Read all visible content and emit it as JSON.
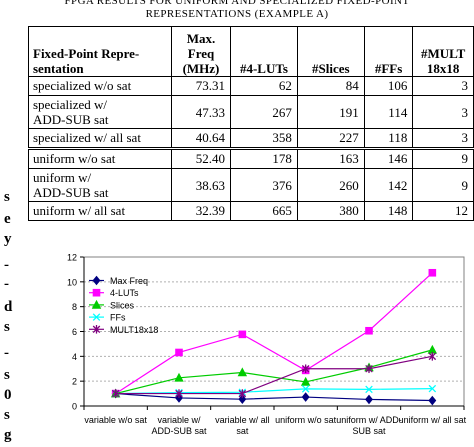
{
  "caption": {
    "line1": "FPGA RESULTS FOR UNIFORM AND SPECIALIZED FIXED-POINT",
    "line2": "REPRESENTATIONS (EXAMPLE A)"
  },
  "left_edge": [
    "s",
    "e",
    "y",
    "-",
    "-",
    "d",
    "s",
    "-",
    "s",
    "0",
    "s",
    "g"
  ],
  "table": {
    "headers": [
      [
        "Fixed-Point Repre-",
        "sentation"
      ],
      [
        "Max.",
        "Freq",
        "(MHz)"
      ],
      [
        "#4-LUTs"
      ],
      [
        "#Slices"
      ],
      [
        "#FFs"
      ],
      [
        "#MULT",
        "18x18"
      ]
    ],
    "rows": [
      {
        "name": [
          "specialized w/o sat"
        ],
        "values": [
          "73.31",
          "62",
          "84",
          "106",
          "3"
        ]
      },
      {
        "name": [
          "specialized w/",
          "ADD-SUB sat"
        ],
        "values": [
          "47.33",
          "267",
          "191",
          "114",
          "3"
        ]
      },
      {
        "name": [
          "specialized w/ all sat"
        ],
        "values": [
          "40.64",
          "358",
          "227",
          "118",
          "3"
        ]
      },
      {
        "name": [
          "uniform w/o sat"
        ],
        "values": [
          "52.40",
          "178",
          "163",
          "146",
          "9"
        ]
      },
      {
        "name": [
          "uniform w/",
          "ADD-SUB sat"
        ],
        "values": [
          "38.63",
          "376",
          "260",
          "142",
          "9"
        ]
      },
      {
        "name": [
          "uniform w/ all sat"
        ],
        "values": [
          "32.39",
          "665",
          "380",
          "148",
          "12"
        ]
      }
    ]
  },
  "chart_data": {
    "type": "line",
    "title": "",
    "xlabel": "",
    "ylabel": "",
    "ylim": [
      0,
      12
    ],
    "yticks": [
      "0",
      "2",
      "4",
      "6",
      "8",
      "10",
      "12"
    ],
    "categories": [
      [
        "variable w/o sat"
      ],
      [
        "variable w/",
        "ADD-SUB sat"
      ],
      [
        "variable w/ all",
        "sat"
      ],
      [
        "uniform w/o sat"
      ],
      [
        "uniform w/ ADD-",
        "SUB sat"
      ],
      [
        "uniform w/ all sat"
      ]
    ],
    "grid": true,
    "legend_position": "top-left",
    "series": [
      {
        "name": "Max Freq",
        "marker": "diamond",
        "color": "#000080",
        "values": [
          1,
          0.65,
          0.55,
          0.72,
          0.53,
          0.44
        ]
      },
      {
        "name": "4-LUTs",
        "marker": "square",
        "color": "#ff00ff",
        "values": [
          1,
          4.31,
          5.77,
          2.87,
          6.06,
          10.73
        ]
      },
      {
        "name": "Slices",
        "marker": "triangle",
        "color": "#00cc00",
        "values": [
          1,
          2.27,
          2.7,
          1.94,
          3.1,
          4.52
        ]
      },
      {
        "name": "FFs",
        "marker": "x",
        "color": "#00ffff",
        "values": [
          1,
          1.08,
          1.11,
          1.38,
          1.34,
          1.4
        ]
      },
      {
        "name": "MULT18x18",
        "marker": "asterisk",
        "color": "#800080",
        "values": [
          1,
          1,
          1,
          3,
          3,
          4
        ]
      }
    ]
  }
}
